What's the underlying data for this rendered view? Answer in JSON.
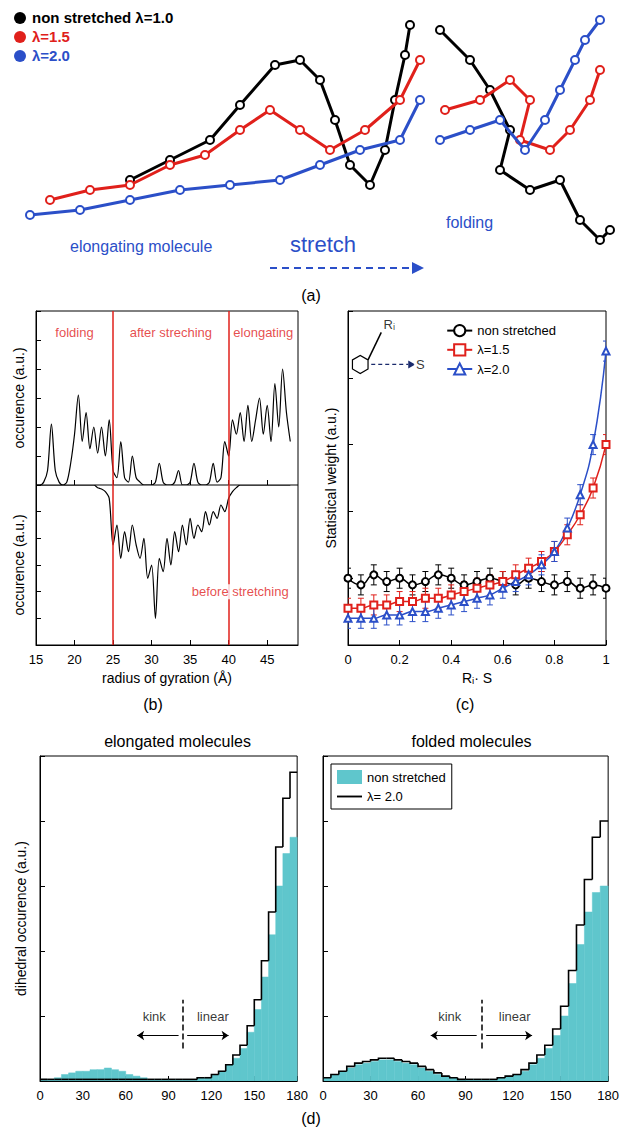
{
  "panel_a": {
    "caption": "(a)",
    "legend": [
      {
        "name": "non stretched λ=1.0",
        "color": "#000000"
      },
      {
        "name": "λ=1.5",
        "color": "#e0201b"
      },
      {
        "name": "λ=2.0",
        "color": "#2b4fc8"
      }
    ],
    "annotations": [
      {
        "text": "elongating molecule",
        "color": "#2b4fc8"
      },
      {
        "text": "stretch",
        "color": "#2b4fc8"
      },
      {
        "text": "folding",
        "color": "#2b4fc8"
      }
    ]
  },
  "chart_data": [
    {
      "type": "line",
      "ylabel": "occurence (a.u.)",
      "color": "#000000",
      "x": [
        15,
        15.5,
        16,
        16.5,
        17,
        17.5,
        18,
        18.5,
        19,
        19.5,
        20,
        20.5,
        21,
        21.5,
        22,
        22.5,
        23,
        23.5,
        24,
        24.5,
        25,
        25.5,
        26,
        26.5,
        27,
        27.5,
        28,
        28.5,
        29,
        29.5,
        30,
        30.5,
        31,
        31.5,
        32,
        32.5,
        33,
        33.5,
        34,
        34.5,
        35,
        35.5,
        36,
        36.5,
        37,
        37.5,
        38,
        38.5,
        39,
        39.5,
        40,
        40.5,
        41,
        41.5,
        42,
        42.5,
        43,
        43.5,
        44,
        44.5,
        45,
        45.5,
        46,
        46.5,
        47,
        47.5,
        48
      ],
      "values": [
        0,
        0,
        0.02,
        0.1,
        0.42,
        0.1,
        0.02,
        0,
        0.02,
        0.15,
        0.35,
        0.62,
        0.3,
        0.5,
        0.25,
        0.4,
        0.22,
        0.4,
        0.2,
        0.45,
        0.1,
        0.05,
        0.3,
        0.05,
        0.02,
        0.2,
        0.05,
        0.02,
        0,
        0,
        0,
        0.02,
        0.15,
        0.02,
        0,
        0,
        0.02,
        0.1,
        0,
        0,
        0.02,
        0.15,
        0.02,
        0,
        0,
        0.02,
        0.15,
        0.02,
        0.05,
        0.3,
        0.2,
        0.45,
        0.35,
        0.5,
        0.3,
        0.55,
        0.3,
        0.45,
        0.6,
        0.35,
        0.55,
        0.3,
        0.7,
        0.4,
        0.8,
        0.5,
        0.3
      ],
      "xlim": [
        15,
        49
      ],
      "xticks": [
        15,
        20,
        25,
        30,
        35,
        40,
        45
      ],
      "ylim": [
        0,
        1.2
      ],
      "yticks": [
        0,
        0.2,
        0.4,
        0.6,
        0.8,
        1,
        1.2
      ],
      "tick_labels": false,
      "grid": false,
      "vlines": {
        "values": [
          25,
          40
        ],
        "color": "#e0201b"
      },
      "annotations": [
        {
          "text": "folding",
          "x": 20,
          "y": 1.05,
          "color": "#e0201b"
        },
        {
          "text": "after streching",
          "x": 32.5,
          "y": 1.05,
          "color": "#e0201b"
        },
        {
          "text": "elongating",
          "x": 44.5,
          "y": 1.05,
          "color": "#e0201b"
        }
      ]
    },
    {
      "type": "line",
      "caption": "(b)",
      "xlabel": "radius of gyration (Å)",
      "ylabel": "occurence (a.u.)",
      "color": "#000000",
      "x": [
        15,
        15.5,
        16,
        16.5,
        17,
        17.5,
        18,
        18.5,
        19,
        19.5,
        20,
        20.5,
        21,
        21.5,
        22,
        22.5,
        23,
        23.5,
        24,
        24.5,
        25,
        25.5,
        26,
        26.5,
        27,
        27.5,
        28,
        28.5,
        29,
        29.5,
        30,
        30.5,
        31,
        31.5,
        32,
        32.5,
        33,
        33.5,
        34,
        34.5,
        35,
        35.5,
        36,
        36.5,
        37,
        37.5,
        38,
        38.5,
        39,
        39.5,
        40,
        40.5,
        41,
        41.5,
        42,
        42.5,
        43,
        43.5,
        44,
        44.5,
        45,
        45.5,
        46,
        46.5,
        47,
        47.5,
        48
      ],
      "values": [
        0,
        0,
        0,
        0,
        0,
        0,
        0,
        0,
        0,
        0,
        0,
        0,
        0,
        0,
        0,
        0,
        0.02,
        0.03,
        0.05,
        0.1,
        0.45,
        0.3,
        0.55,
        0.35,
        0.5,
        0.3,
        0.45,
        0.55,
        0.4,
        0.7,
        0.6,
        1,
        0.55,
        0.65,
        0.4,
        0.6,
        0.35,
        0.5,
        0.3,
        0.45,
        0.25,
        0.4,
        0.3,
        0.35,
        0.2,
        0.3,
        0.2,
        0.25,
        0.15,
        0.2,
        0.1,
        0.05,
        0.02,
        0,
        0,
        0,
        0,
        0,
        0,
        0,
        0,
        0,
        0,
        0,
        0,
        0,
        0
      ],
      "xlim": [
        15,
        49
      ],
      "xticks": [
        15,
        20,
        25,
        30,
        35,
        40,
        45
      ],
      "ylim": [
        0,
        1.2
      ],
      "yticks": [
        0,
        0.2,
        0.4,
        0.6,
        0.8,
        1,
        1.2
      ],
      "tick_labels": "x",
      "grid": false,
      "vlines": {
        "values": [
          25,
          40
        ],
        "color": "#e0201b"
      },
      "annotations": [
        {
          "text": "before stretching",
          "x": 41.5,
          "y": 0.8,
          "color": "#e0201b"
        }
      ]
    },
    {
      "type": "line",
      "caption": "(c)",
      "xlabel": "Rᵢ· S",
      "ylabel": "Statistical weight (a.u.)",
      "x": [
        0,
        0.05,
        0.1,
        0.15,
        0.2,
        0.25,
        0.3,
        0.35,
        0.4,
        0.45,
        0.5,
        0.55,
        0.6,
        0.65,
        0.7,
        0.75,
        0.8,
        0.85,
        0.9,
        0.95,
        1
      ],
      "series": [
        {
          "name": "non stretched",
          "color": "#000000",
          "marker": "circle",
          "values": [
            0.2,
            0.18,
            0.21,
            0.19,
            0.2,
            0.18,
            0.19,
            0.21,
            0.2,
            0.18,
            0.19,
            0.2,
            0.19,
            0.18,
            0.2,
            0.19,
            0.18,
            0.19,
            0.17,
            0.18,
            0.17
          ],
          "errors": [
            0.03,
            0.03,
            0.03,
            0.03,
            0.03,
            0.03,
            0.03,
            0.03,
            0.03,
            0.03,
            0.03,
            0.03,
            0.03,
            0.03,
            0.03,
            0.03,
            0.03,
            0.03,
            0.03,
            0.03,
            0.03
          ]
        },
        {
          "name": "λ=1.5",
          "color": "#e0201b",
          "marker": "square",
          "values": [
            0.11,
            0.11,
            0.12,
            0.12,
            0.13,
            0.13,
            0.14,
            0.14,
            0.15,
            0.16,
            0.17,
            0.18,
            0.19,
            0.21,
            0.23,
            0.25,
            0.28,
            0.33,
            0.39,
            0.47,
            0.6
          ],
          "errors": [
            0.03,
            0.03,
            0.03,
            0.03,
            0.03,
            0.03,
            0.03,
            0.03,
            0.03,
            0.03,
            0.03,
            0.03,
            0.03,
            0.03,
            0.03,
            0.03,
            0.03,
            0.03,
            0.03,
            0.03,
            0.03
          ]
        },
        {
          "name": "λ=2.0",
          "color": "#2b4fc8",
          "marker": "triangle",
          "values": [
            0.08,
            0.08,
            0.08,
            0.09,
            0.09,
            0.1,
            0.1,
            0.11,
            0.12,
            0.13,
            0.14,
            0.15,
            0.17,
            0.19,
            0.21,
            0.24,
            0.28,
            0.35,
            0.45,
            0.6,
            0.88
          ],
          "errors": [
            0.03,
            0.03,
            0.03,
            0.03,
            0.03,
            0.03,
            0.03,
            0.03,
            0.03,
            0.03,
            0.03,
            0.03,
            0.03,
            0.03,
            0.03,
            0.03,
            0.03,
            0.03,
            0.03,
            0.03,
            0.03
          ]
        }
      ],
      "xlim": [
        0,
        1
      ],
      "xticks": [
        0,
        0.2,
        0.4,
        0.6,
        0.8,
        1
      ],
      "ylim": [
        0,
        1
      ],
      "yticks": [
        0,
        0.2,
        0.4,
        0.6,
        0.8,
        1
      ],
      "tick_labels": "x",
      "grid": false,
      "legend": "upper right",
      "annotations": [
        {
          "text": "Rᵢ",
          "x": 0.16,
          "y": 0.96,
          "color": "#000000"
        },
        {
          "text": "S",
          "x": 0.28,
          "y": 0.84,
          "color": "#000000"
        }
      ]
    },
    {
      "type": "histogram",
      "caption": "(d)",
      "title": "elongated molecules",
      "ylabel": "dihedral occurence (a.u.)",
      "bins": [
        0,
        5,
        10,
        15,
        20,
        25,
        30,
        35,
        40,
        45,
        50,
        55,
        60,
        65,
        70,
        75,
        80,
        85,
        90,
        95,
        100,
        105,
        110,
        115,
        120,
        125,
        130,
        135,
        140,
        145,
        150,
        155,
        160,
        165,
        170,
        175,
        180
      ],
      "series": [
        {
          "name": "non stretched",
          "color": "#5fc6cc",
          "type": "bar",
          "values": [
            0.005,
            0.005,
            0.01,
            0.02,
            0.025,
            0.03,
            0.03,
            0.035,
            0.035,
            0.04,
            0.035,
            0.03,
            0.02,
            0.015,
            0.01,
            0.005,
            0.005,
            0.005,
            0.005,
            0.005,
            0.005,
            0.005,
            0.01,
            0.01,
            0.02,
            0.03,
            0.05,
            0.07,
            0.1,
            0.15,
            0.22,
            0.32,
            0.45,
            0.6,
            0.7,
            0.75
          ]
        },
        {
          "name": "λ= 2.0",
          "color": "#000000",
          "type": "line",
          "line_style": "step",
          "values": [
            0.005,
            0.005,
            0.005,
            0.005,
            0.005,
            0.005,
            0.005,
            0.005,
            0.005,
            0.005,
            0.005,
            0.005,
            0.005,
            0.005,
            0.005,
            0.005,
            0.005,
            0.005,
            0.005,
            0.005,
            0.005,
            0.005,
            0.01,
            0.01,
            0.02,
            0.03,
            0.05,
            0.08,
            0.11,
            0.17,
            0.25,
            0.37,
            0.52,
            0.72,
            0.87,
            0.95
          ]
        }
      ],
      "xlim": [
        0,
        180
      ],
      "xticks": [
        0,
        30,
        60,
        90,
        120,
        150,
        180
      ],
      "ylim": [
        0,
        1
      ],
      "yticks": [
        0,
        0.2,
        0.4,
        0.6,
        0.8,
        1
      ],
      "tick_labels": "x",
      "grid": false,
      "vlines": {
        "values": [
          100
        ],
        "color": "#000000"
      },
      "annotations": [
        {
          "text": "kink",
          "x": 80,
          "y": 0.2,
          "color": "#000000"
        },
        {
          "text": "linear",
          "x": 121,
          "y": 0.2,
          "color": "#000000"
        }
      ]
    },
    {
      "type": "histogram",
      "title": "folded molecules",
      "bins": [
        0,
        5,
        10,
        15,
        20,
        25,
        30,
        35,
        40,
        45,
        50,
        55,
        60,
        65,
        70,
        75,
        80,
        85,
        90,
        95,
        100,
        105,
        110,
        115,
        120,
        125,
        130,
        135,
        140,
        145,
        150,
        155,
        160,
        165,
        170,
        175,
        180
      ],
      "series": [
        {
          "name": "non stretched",
          "color": "#5fc6cc",
          "type": "bar",
          "values": [
            0.01,
            0.02,
            0.03,
            0.04,
            0.05,
            0.055,
            0.06,
            0.065,
            0.065,
            0.06,
            0.055,
            0.05,
            0.04,
            0.03,
            0.02,
            0.015,
            0.01,
            0.005,
            0.005,
            0.005,
            0.005,
            0.005,
            0.01,
            0.015,
            0.02,
            0.03,
            0.05,
            0.07,
            0.1,
            0.14,
            0.2,
            0.3,
            0.42,
            0.52,
            0.58,
            0.6
          ]
        },
        {
          "name": "λ= 2.0",
          "color": "#000000",
          "type": "line",
          "line_style": "step",
          "values": [
            0.01,
            0.02,
            0.03,
            0.045,
            0.055,
            0.06,
            0.065,
            0.07,
            0.07,
            0.065,
            0.06,
            0.055,
            0.045,
            0.035,
            0.025,
            0.015,
            0.01,
            0.005,
            0.005,
            0.005,
            0.005,
            0.005,
            0.01,
            0.015,
            0.02,
            0.035,
            0.055,
            0.08,
            0.11,
            0.16,
            0.23,
            0.34,
            0.48,
            0.62,
            0.75,
            0.8
          ]
        }
      ],
      "xlim": [
        0,
        180
      ],
      "xticks": [
        0,
        30,
        60,
        90,
        120,
        150,
        180
      ],
      "ylim": [
        0,
        1
      ],
      "yticks": [
        0,
        0.2,
        0.4,
        0.6,
        0.8,
        1
      ],
      "tick_labels": "x",
      "grid": false,
      "legend": "upper left",
      "vlines": {
        "values": [
          100
        ],
        "color": "#000000"
      },
      "annotations": [
        {
          "text": "kink",
          "x": 80,
          "y": 0.2,
          "color": "#000000"
        },
        {
          "text": "linear",
          "x": 121,
          "y": 0.2,
          "color": "#000000"
        }
      ]
    }
  ]
}
